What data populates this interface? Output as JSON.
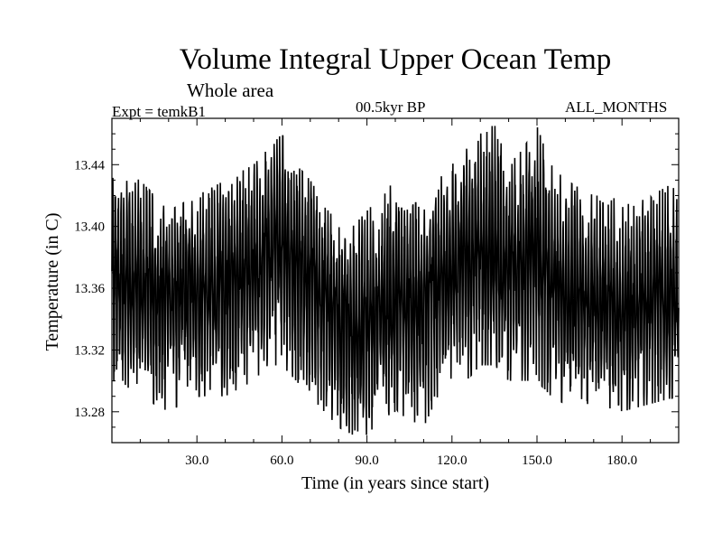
{
  "chart_data": {
    "type": "line",
    "title": "Volume Integral Upper Ocean Temp",
    "subtitle": "Whole area",
    "experiment": "Expt = temkB1",
    "period": "00.5kyr BP",
    "months": "ALL_MONTHS",
    "xlabel": "Time (in years since start)",
    "ylabel": "Temperature (in C)",
    "xlim": [
      0,
      200
    ],
    "ylim": [
      13.26,
      13.47
    ],
    "xticks": [
      30,
      60,
      90,
      120,
      150,
      180
    ],
    "xtick_labels": [
      "30.0",
      "60.0",
      "90.0",
      "120.0",
      "150.0",
      "180.0"
    ],
    "yticks": [
      13.28,
      13.32,
      13.36,
      13.4,
      13.44
    ],
    "ytick_labels": [
      "13.28",
      "13.32",
      "13.36",
      "13.40",
      "13.44"
    ],
    "series": [
      {
        "name": "temperature",
        "sampling": "monthly",
        "color": "#000000",
        "x": [
          0,
          10,
          20,
          30,
          40,
          50,
          55,
          60,
          65,
          70,
          80,
          85,
          90,
          95,
          100,
          105,
          110,
          115,
          120,
          125,
          130,
          135,
          140,
          145,
          150,
          155,
          160,
          170,
          180,
          190,
          200
        ],
        "center": [
          13.365,
          13.36,
          13.355,
          13.36,
          13.365,
          13.375,
          13.385,
          13.39,
          13.38,
          13.37,
          13.345,
          13.335,
          13.34,
          13.345,
          13.35,
          13.345,
          13.35,
          13.365,
          13.375,
          13.38,
          13.385,
          13.385,
          13.37,
          13.375,
          13.38,
          13.37,
          13.36,
          13.35,
          13.345,
          13.35,
          13.355
        ],
        "max": [
          13.435,
          13.43,
          13.41,
          13.42,
          13.43,
          13.44,
          13.45,
          13.46,
          13.44,
          13.43,
          13.4,
          13.4,
          13.41,
          13.42,
          13.43,
          13.42,
          13.41,
          13.43,
          13.44,
          13.45,
          13.46,
          13.466,
          13.44,
          13.45,
          13.465,
          13.44,
          13.43,
          13.42,
          13.42,
          13.42,
          13.43
        ],
        "min": [
          13.3,
          13.29,
          13.28,
          13.29,
          13.29,
          13.3,
          13.31,
          13.31,
          13.3,
          13.29,
          13.27,
          13.265,
          13.265,
          13.275,
          13.28,
          13.275,
          13.27,
          13.29,
          13.3,
          13.3,
          13.31,
          13.31,
          13.3,
          13.3,
          13.3,
          13.29,
          13.285,
          13.285,
          13.28,
          13.285,
          13.29
        ]
      }
    ]
  }
}
